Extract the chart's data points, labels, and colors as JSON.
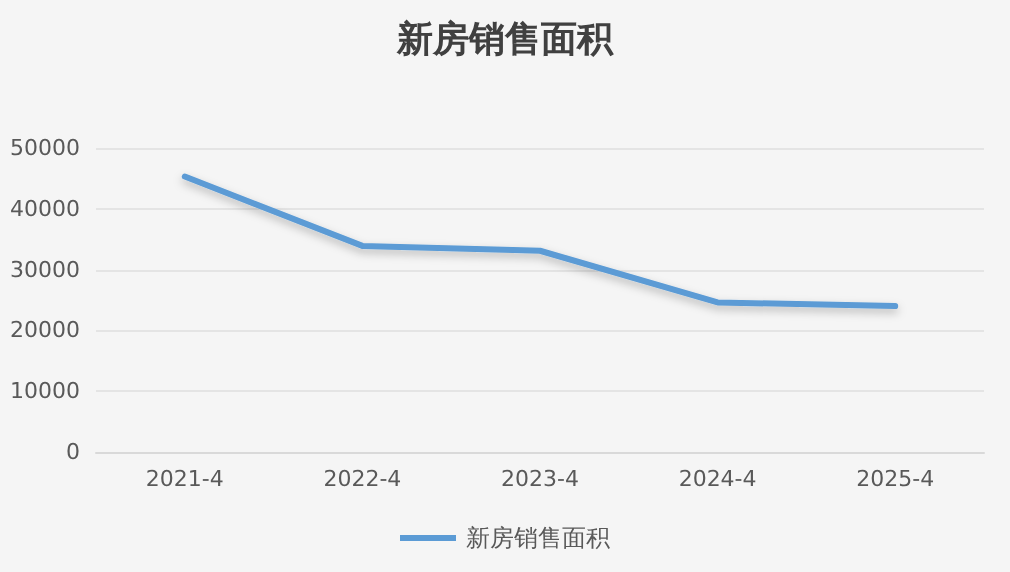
{
  "chart_data": {
    "type": "line",
    "title": "新房销售面积",
    "categories": [
      "2021-4",
      "2022-4",
      "2023-4",
      "2024-4",
      "2025-4"
    ],
    "series": [
      {
        "name": "新房销售面积",
        "color": "#5b9bd5",
        "values": [
          45300,
          33900,
          33100,
          24600,
          24000
        ]
      }
    ],
    "ylim": [
      0,
      50000
    ],
    "yticks": [
      0,
      10000,
      20000,
      30000,
      40000,
      50000
    ],
    "grid": "y",
    "legend": "bottom",
    "marker": "none",
    "line_style": "solid"
  }
}
